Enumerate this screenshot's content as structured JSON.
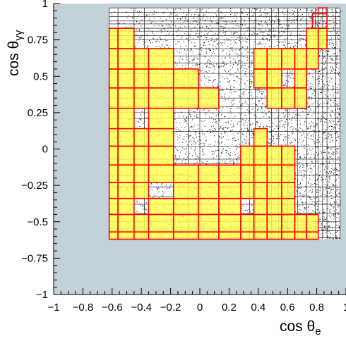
{
  "chart_data": {
    "type": "heatmap",
    "xlabel": "cos θe",
    "ylabel": "cos θγγ",
    "xlim": [
      -1,
      1
    ],
    "ylim": [
      -1,
      1
    ],
    "x_ticks": [
      {
        "value": -1,
        "label": "−1"
      },
      {
        "value": -0.8,
        "label": "−0.8"
      },
      {
        "value": -0.6,
        "label": "−0.6"
      },
      {
        "value": -0.4,
        "label": "−0.4"
      },
      {
        "value": -0.2,
        "label": "−0.2"
      },
      {
        "value": 0,
        "label": "0"
      },
      {
        "value": 0.2,
        "label": "0.2"
      },
      {
        "value": 0.4,
        "label": "0.4"
      },
      {
        "value": 0.6,
        "label": "0.6"
      },
      {
        "value": 0.8,
        "label": "0.8"
      },
      {
        "value": 1,
        "label": "1"
      }
    ],
    "y_ticks": [
      {
        "value": 1,
        "label": "1"
      },
      {
        "value": 0.75,
        "label": "0.75"
      },
      {
        "value": 0.5,
        "label": "0.5"
      },
      {
        "value": 0.25,
        "label": "0.25"
      },
      {
        "value": 0,
        "label": "0"
      },
      {
        "value": -0.25,
        "label": "−0.25"
      },
      {
        "value": -0.5,
        "label": "−0.5"
      },
      {
        "value": -0.75,
        "label": "−0.75"
      },
      {
        "value": -1,
        "label": "−1"
      }
    ],
    "data_region": {
      "x": [
        -0.62,
        0.96
      ],
      "y": [
        -0.62,
        0.97
      ]
    },
    "grid_lines_x": [
      -0.62,
      -0.56,
      -0.45,
      -0.38,
      -0.18,
      -0.08,
      0.0,
      0.13,
      0.28,
      0.34,
      0.38,
      0.49,
      0.54,
      0.6,
      0.67,
      0.73,
      0.79,
      0.81,
      0.84,
      0.87,
      0.93,
      0.96
    ],
    "grid_lines_y": [
      0.97,
      0.94,
      0.91,
      0.88,
      0.86,
      0.83,
      0.81,
      0.78,
      0.75,
      0.69,
      0.64,
      0.59,
      0.52,
      0.41,
      0.35,
      0.29,
      0.25,
      0.21,
      0.12,
      0.02,
      -0.07,
      -0.1,
      -0.18,
      -0.26,
      -0.33,
      -0.38,
      -0.44,
      -0.5,
      -0.54,
      -0.56,
      -0.61
    ],
    "x_bin_edges": [
      -0.62,
      -0.56,
      -0.45,
      -0.35,
      -0.18,
      -0.01,
      0.13,
      0.28,
      0.37,
      0.46,
      0.56,
      0.65,
      0.73,
      0.81,
      0.87
    ],
    "y_bin_edges": [
      -0.62,
      -0.57,
      -0.45,
      -0.34,
      -0.23,
      -0.11,
      0.02,
      0.14,
      0.28,
      0.42,
      0.55,
      0.69,
      0.83
    ],
    "bins": [
      [
        1,
        1,
        1,
        1,
        1,
        1,
        1,
        1,
        1,
        1,
        1,
        1,
        1,
        0
      ],
      [
        1,
        1,
        1,
        1,
        1,
        1,
        1,
        1,
        1,
        1,
        1,
        1,
        1,
        0
      ],
      [
        1,
        1,
        0,
        1,
        1,
        1,
        1,
        0,
        1,
        1,
        1,
        0,
        0,
        0
      ],
      [
        1,
        1,
        1,
        0,
        1,
        1,
        1,
        1,
        1,
        1,
        1,
        0,
        0,
        0
      ],
      [
        1,
        1,
        1,
        1,
        1,
        1,
        1,
        1,
        1,
        1,
        1,
        0,
        0,
        0
      ],
      [
        1,
        1,
        1,
        1,
        0,
        0,
        0,
        1,
        1,
        1,
        1,
        0,
        0,
        0
      ],
      [
        1,
        1,
        1,
        1,
        0,
        0,
        0,
        0,
        1,
        0,
        0,
        0,
        0,
        0
      ],
      [
        1,
        1,
        0,
        1,
        0,
        0,
        0,
        0,
        0,
        0,
        0,
        0,
        0,
        0
      ],
      [
        1,
        1,
        1,
        1,
        1,
        1,
        0,
        0,
        0,
        1,
        1,
        1,
        0,
        0
      ],
      [
        1,
        1,
        1,
        1,
        1,
        0,
        0,
        0,
        1,
        1,
        0,
        1,
        0,
        0
      ],
      [
        1,
        1,
        1,
        1,
        0,
        0,
        0,
        0,
        1,
        1,
        1,
        1,
        1,
        0
      ],
      [
        1,
        1,
        0,
        0,
        0,
        0,
        0,
        0,
        0,
        0,
        0,
        0,
        1,
        1
      ]
    ],
    "extra_cells": [
      {
        "x": [
          0.77,
          0.87
        ],
        "y": [
          0.83,
          0.93
        ]
      },
      {
        "x": [
          0.81,
          0.87
        ],
        "y": [
          0.93,
          0.97
        ]
      }
    ],
    "colors": {
      "frame_bg": "#c2d0d8",
      "plot_bg": "#ffffff",
      "bin_fill": "#ffff4c",
      "bin_edge": "#ff0000",
      "grid": "#000000",
      "dots": "#000000"
    }
  }
}
